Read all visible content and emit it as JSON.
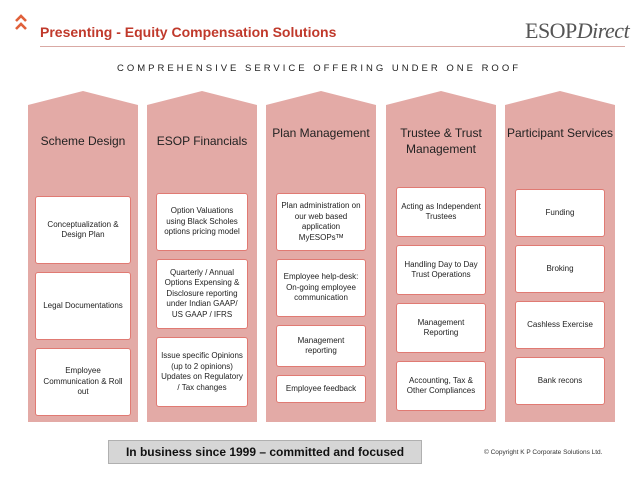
{
  "header": {
    "title": "Presenting  -  Equity Compensation Solutions",
    "logo_primary": "ESOP",
    "logo_secondary": "Direct",
    "tagline": "COMPREHENSIVE SERVICE OFFERING UNDER ONE ROOF"
  },
  "columns": [
    {
      "heading": "Scheme Design",
      "items": [
        "Conceptualization & Design Plan",
        "Legal Documentations",
        "Employee Communication & Roll out"
      ]
    },
    {
      "heading": "ESOP Financials",
      "items": [
        "Option Valuations using Black Scholes options pricing model",
        "Quarterly / Annual Options Expensing & Disclosure reporting under Indian GAAP/ US GAAP / IFRS",
        "Issue specific Opinions (up to 2 opinions) Updates on Regulatory / Tax changes"
      ]
    },
    {
      "heading": "Plan Management",
      "items": [
        "Plan administration on our web based application MyESOPsᵀᴹ",
        "Employee help-desk: On-going employee communication",
        "Management reporting",
        "Employee feedback"
      ]
    },
    {
      "heading": "Trustee & Trust Management",
      "items": [
        "Acting as Independent Trustees",
        "Handling Day to Day Trust Operations",
        "Management Reporting",
        "Accounting, Tax & Other Compliances"
      ]
    },
    {
      "heading": "Participant Services",
      "items": [
        "Funding",
        "Broking",
        "Cashless Exercise",
        "Bank recons"
      ]
    }
  ],
  "footer": {
    "banner": "In business since 1999 – committed and focused",
    "copyright": "© Copyright K P Corporate Solutions Ltd."
  },
  "colors": {
    "title_red": "#c0392b",
    "column_fill": "#e3aaa6",
    "box_border": "#e07a73",
    "chevron": "#e0603a"
  },
  "icons": [
    "double-chevron-up-icon"
  ]
}
